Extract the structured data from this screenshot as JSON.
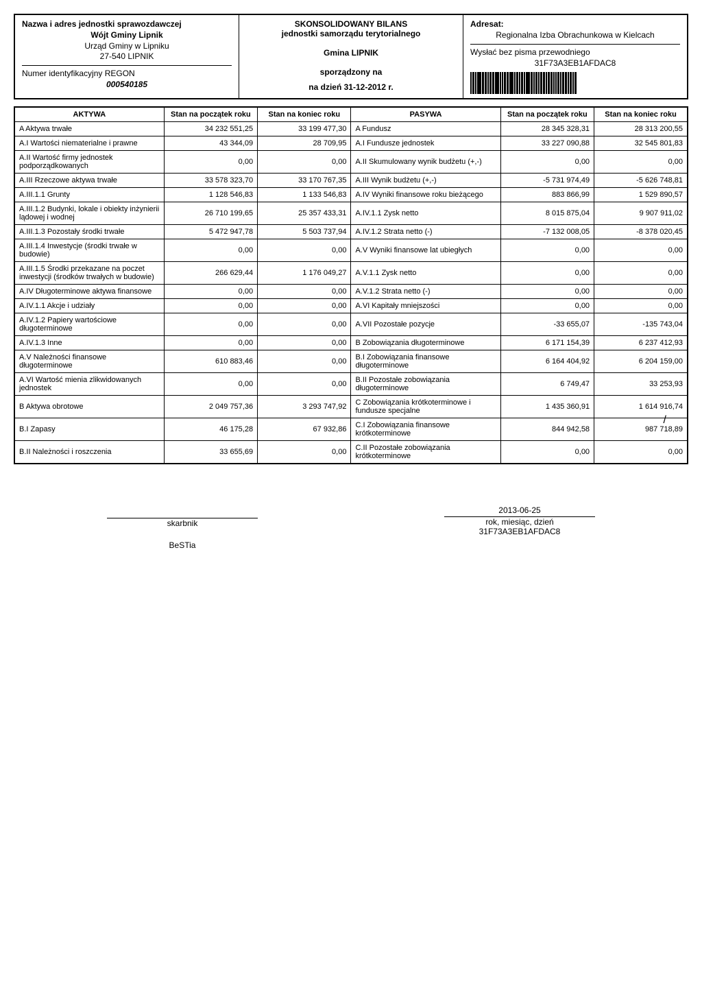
{
  "header": {
    "left": {
      "title": "Nazwa i adres jednostki sprawozdawczej",
      "wojt": "Wójt Gminy Lipnik",
      "addr1": "Urząd Gminy w Lipniku",
      "addr2": "27-540 LIPNIK",
      "regon_label": "Numer identyfikacyjny REGON",
      "regon": "000540185"
    },
    "center": {
      "title1": "SKONSOLIDOWANY BILANS",
      "title2": "jednostki samorządu terytorialnego",
      "gmina": "Gmina LIPNIK",
      "sporzadzony": "sporządzony na",
      "nadzien": "na dzień 31-12-2012 r."
    },
    "right": {
      "adresat_label": "Adresat:",
      "adresat": "Regionalna Izba Obrachunkowa w Kielcach",
      "wyslac": "Wysłać bez pisma przewodniego",
      "code": "31F73A3EB1AFDAC8"
    }
  },
  "table": {
    "headers": {
      "aktywa": "AKTYWA",
      "stan_pocz_a": "Stan na początek roku",
      "stan_kon_a": "Stan na koniec roku",
      "pasywa": "PASYWA",
      "stan_pocz_p": "Stan na początek roku",
      "stan_kon_p": "Stan na koniec roku"
    },
    "rows": [
      {
        "a": "A Aktywa trwałe",
        "a1": "34 232 551,25",
        "a2": "33 199 477,30",
        "p": "A Fundusz",
        "p1": "28 345 328,31",
        "p2": "28 313 200,55",
        "gap_after": true
      },
      {
        "a": "A.I Wartości niematerialne i prawne",
        "a1": "43 344,09",
        "a2": "28 709,95",
        "p": "A.I Fundusze jednostek",
        "p1": "33 227 090,88",
        "p2": "32 545 801,83"
      },
      {
        "a": "A.II Wartość firmy jednostek podporządkowanych",
        "a1": "0,00",
        "a2": "0,00",
        "p": "A.II Skumulowany wynik budżetu (+,-)",
        "p1": "0,00",
        "p2": "0,00"
      },
      {
        "a": "A.III Rzeczowe aktywa trwałe",
        "a1": "33 578 323,70",
        "a2": "33 170 767,35",
        "p": "A.III Wynik budżetu (+,-)",
        "p1": "-5 731 974,49",
        "p2": "-5 626 748,81",
        "gap_after": true
      },
      {
        "a": "A.III.1.1 Grunty",
        "a1": "1 128 546,83",
        "a2": "1 133 546,83",
        "p": "A.IV Wyniki finansowe roku bieżącego",
        "p1": "883 866,99",
        "p2": "1 529 890,57"
      },
      {
        "a": "A.III.1.2 Budynki, lokale i obiekty inżynierii lądowej i wodnej",
        "a1": "26 710 199,65",
        "a2": "25 357 433,31",
        "p": "A.IV.1.1 Zysk netto",
        "p1": "8 015 875,04",
        "p2": "9 907 911,02"
      },
      {
        "a": "A.III.1.3 Pozostały środki trwałe",
        "a1": "5 472 947,78",
        "a2": "5 503 737,94",
        "p": "A.IV.1.2 Strata netto (-)",
        "p1": "-7 132 008,05",
        "p2": "-8 378 020,45"
      },
      {
        "a": "A.III.1.4 Inwestycje (środki trwałe w budowie)",
        "a1": "0,00",
        "a2": "0,00",
        "p": "A.V Wyniki finansowe lat ubiegłych",
        "p1": "0,00",
        "p2": "0,00"
      },
      {
        "a": "A.III.1.5 Środki przekazane na poczet inwestycji (środków trwałych w budowie)",
        "a1": "266 629,44",
        "a2": "1 176 049,27",
        "p": "A.V.1.1 Zysk netto",
        "p1": "0,00",
        "p2": "0,00"
      },
      {
        "a": "A.IV Długoterminowe aktywa finansowe",
        "a1": "0,00",
        "a2": "0,00",
        "p": "A.V.1.2 Strata netto (-)",
        "p1": "0,00",
        "p2": "0,00",
        "gap_after": true
      },
      {
        "a": "A.IV.1.1 Akcje i udziały",
        "a1": "0,00",
        "a2": "0,00",
        "p": "A.VI Kapitały mniejszości",
        "p1": "0,00",
        "p2": "0,00"
      },
      {
        "a": "A.IV.1.2 Papiery wartościowe długoterminowe",
        "a1": "0,00",
        "a2": "0,00",
        "p": "A.VII Pozostałe pozycje",
        "p1": "-33 655,07",
        "p2": "-135 743,04"
      },
      {
        "a": "A.IV.1.3 Inne",
        "a1": "0,00",
        "a2": "0,00",
        "p": "B Zobowiązania długoterminowe",
        "p1": "6 171 154,39",
        "p2": "6 237 412,93"
      },
      {
        "a": "A.V Należności finansowe długoterminowe",
        "a1": "610 883,46",
        "a2": "0,00",
        "p": "B.I Zobowiązania finansowe długoterminowe",
        "p1": "6 164 404,92",
        "p2": "6 204 159,00"
      },
      {
        "a": "A.VI Wartość mienia zlikwidowanych jednostek",
        "a1": "0,00",
        "a2": "0,00",
        "p": "B.II Pozostałe zobowiązania długoterminowe",
        "p1": "6 749,47",
        "p2": "33 253,93"
      },
      {
        "a": "B Aktywa obrotowe",
        "a1": "2 049 757,36",
        "a2": "3 293 747,92",
        "p": "C Zobowiązania krótkoterminowe i fundusze specjalne",
        "p1": "1 435 360,91",
        "p2": "1 614 916,74"
      },
      {
        "a": "B.I Zapasy",
        "a1": "46 175,28",
        "a2": "67 932,86",
        "p": "C.I Zobowiązania finansowe krótkoterminowe",
        "p1": "844 942,58",
        "p2": "987 718,89",
        "slash": true
      },
      {
        "a": "B.II Należności i roszczenia",
        "a1": "33 655,69",
        "a2": "0,00",
        "p": "C.II Pozostałe zobowiązania krótkoterminowe",
        "p1": "0,00",
        "p2": "0,00"
      }
    ]
  },
  "footer": {
    "skarbnik": "skarbnik",
    "date": "2013-06-25",
    "datelabel": "rok, miesiąc, dzień",
    "code": "31F73A3EB1AFDAC8",
    "bestia": "BeSTia"
  }
}
